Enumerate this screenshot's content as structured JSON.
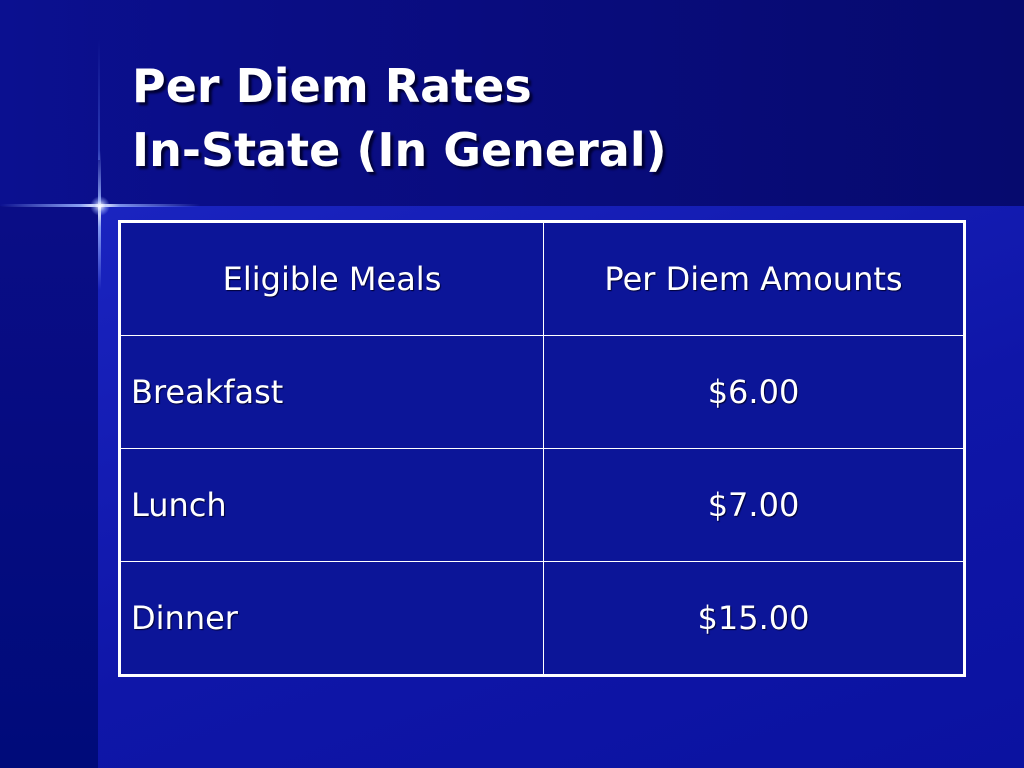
{
  "slide": {
    "title_line1": "Per Diem Rates",
    "title_line2": "In-State (In General)"
  },
  "table": {
    "headers": [
      "Eligible Meals",
      "Per Diem Amounts"
    ],
    "rows": [
      {
        "meal": "Breakfast",
        "amount": "$6.00"
      },
      {
        "meal": "Lunch",
        "amount": "$7.00"
      },
      {
        "meal": "Dinner",
        "amount": "$15.00"
      }
    ]
  },
  "colors": {
    "background": "#0f16a8",
    "title_band": "#0a0d84",
    "text": "#ffffff",
    "table_border": "#ffffff"
  }
}
